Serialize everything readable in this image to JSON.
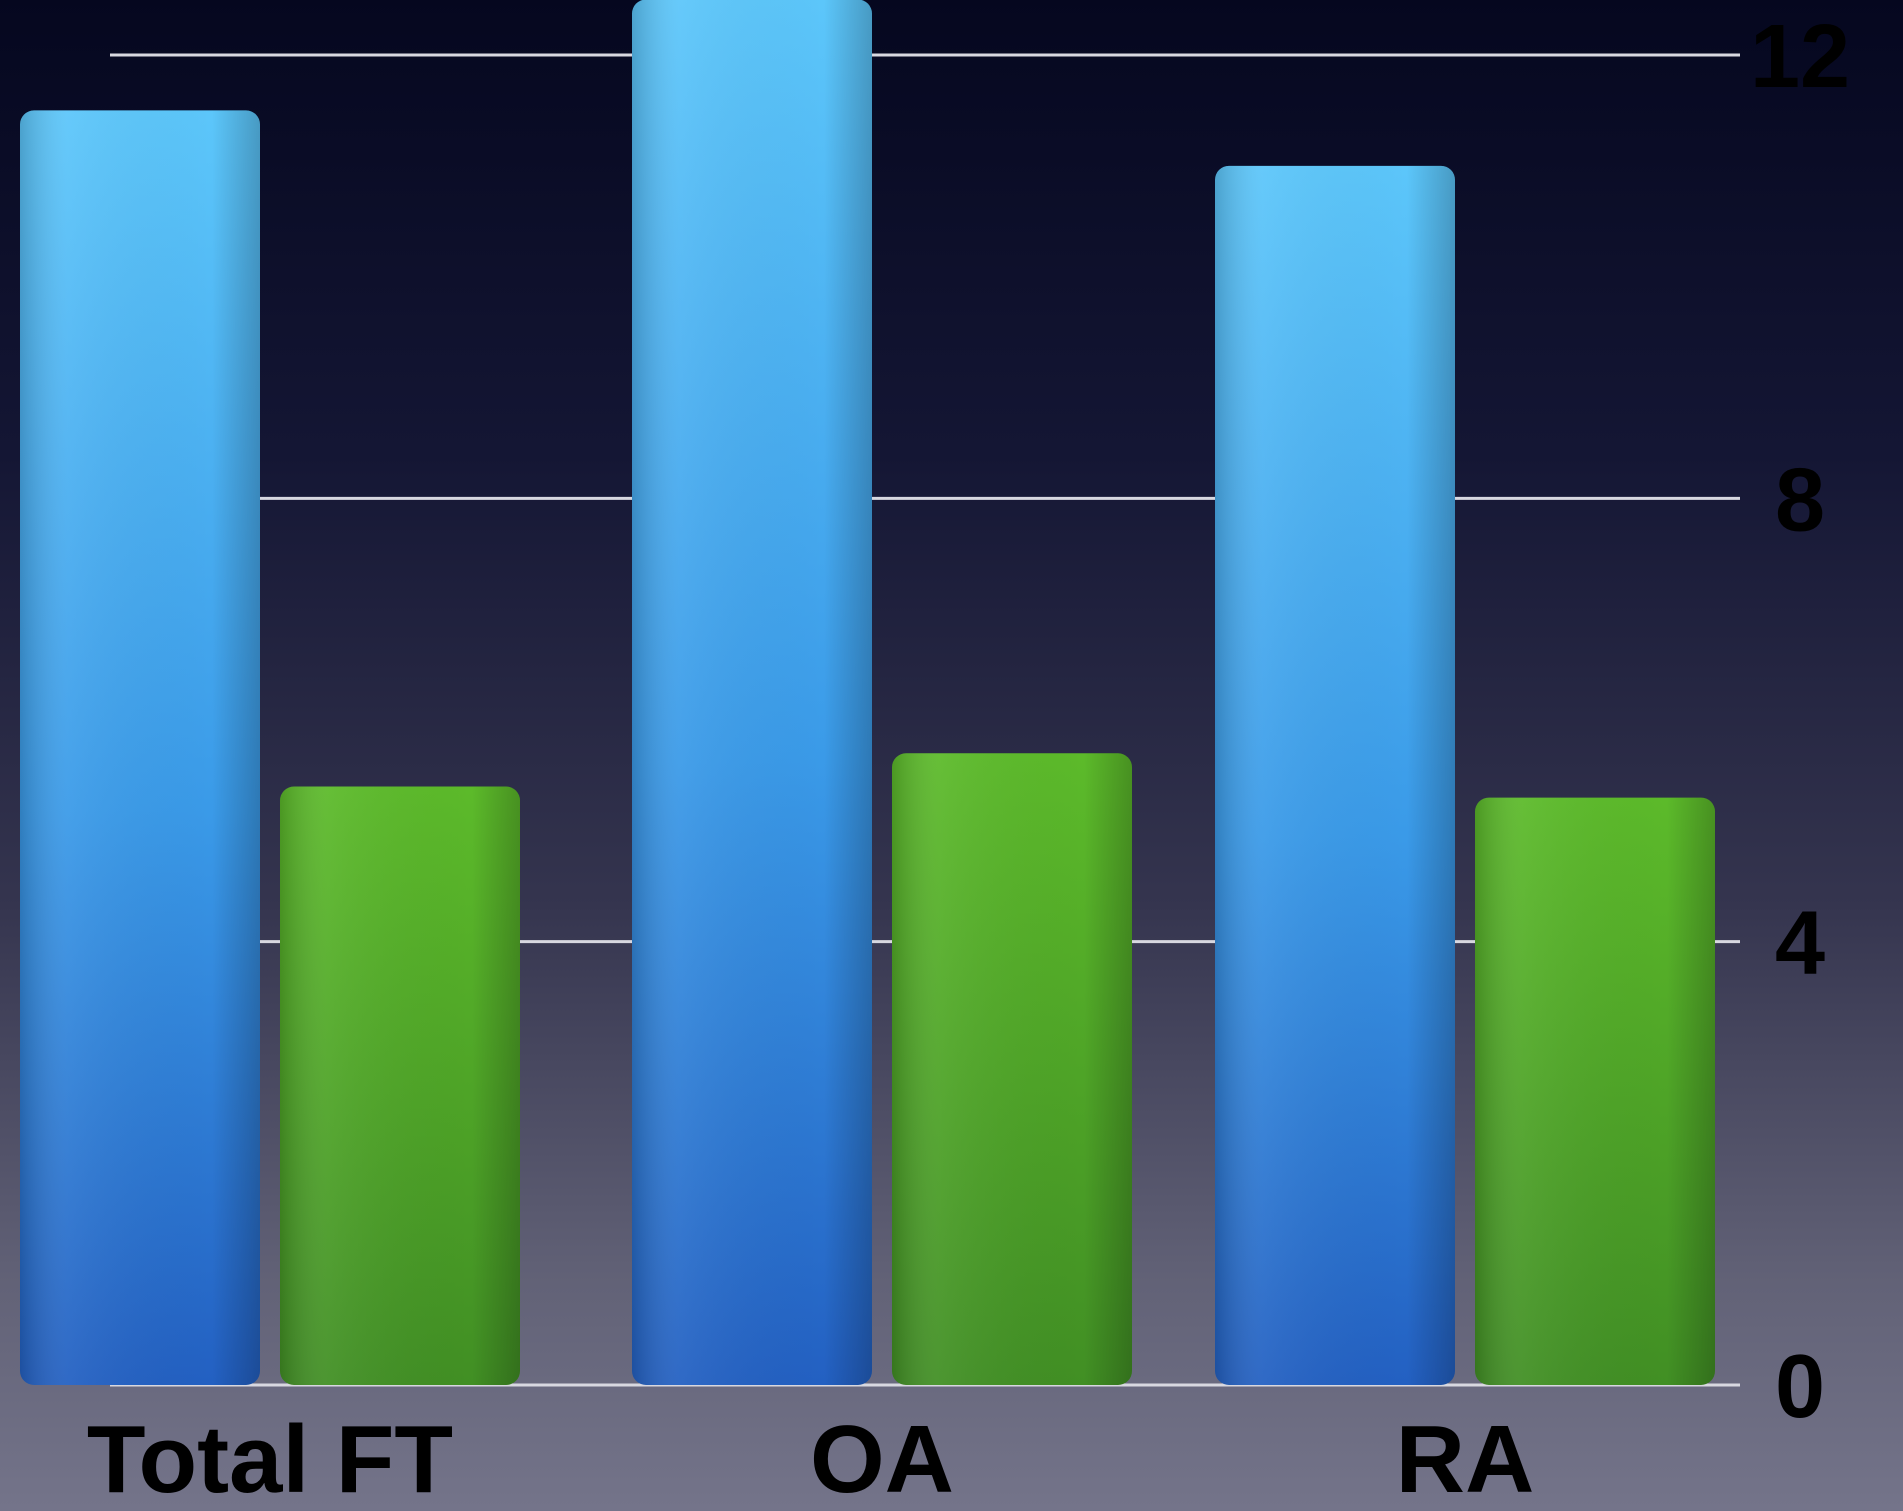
{
  "chart_data": {
    "type": "bar",
    "categories": [
      "Total FT",
      "OA",
      "RA"
    ],
    "series": [
      {
        "values": [
          11.5,
          12.5,
          11.0
        ],
        "color": "#3a9ae8"
      },
      {
        "values": [
          5.4,
          5.7,
          5.3
        ],
        "color": "#4fa82a"
      }
    ],
    "yticks": [
      0,
      4,
      8,
      12
    ],
    "ylim": [
      0,
      12
    ],
    "grid": true,
    "legend": "none"
  }
}
